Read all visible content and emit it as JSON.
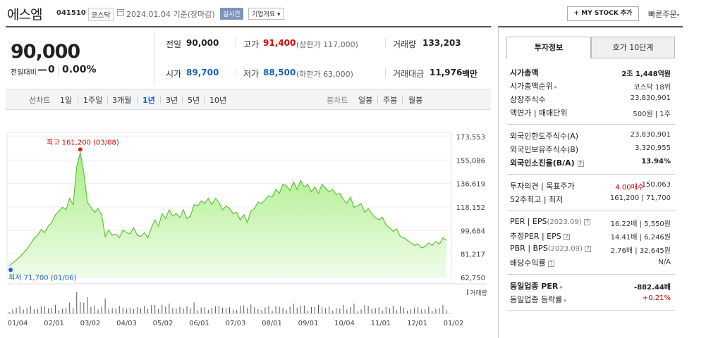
{
  "header": {
    "name": "에스엠",
    "code": "041510",
    "market": "코스닥",
    "date": "2024.01.04  기준(장마감)",
    "realtime": "실시간",
    "corp_info": "기업개요",
    "mystock": "+ MY STOCK 추가",
    "quick_order": "빠른주문"
  },
  "quote": {
    "price": "90,000",
    "prev_label": "전일대비",
    "change": "0",
    "change_pct": "0.00%",
    "prev_close_label": "전일",
    "prev_close": "90,000",
    "high_label": "고가",
    "high": "91,400",
    "upper_limit": "(상한가 117,000)",
    "volume_label": "거래량",
    "volume": "133,203",
    "open_label": "시가",
    "open": "89,700",
    "low_label": "저가",
    "low": "88,500",
    "lower_limit": "(하한가 63,000)",
    "amount_label": "거래대금",
    "amount": "11,976",
    "amount_unit": "백만"
  },
  "toolbar": {
    "line_label": "선차트",
    "periods": [
      "1일",
      "1주일",
      "3개월",
      "1년",
      "3년",
      "5년",
      "10년"
    ],
    "active_period": "1년",
    "candle_label": "봉차트",
    "candles": [
      "일봉",
      "주봉",
      "월봉"
    ]
  },
  "panel": {
    "tabs": [
      "투자정보",
      "호가 10단계"
    ],
    "market_cap_label": "시가총액",
    "market_cap": "2조 1,448억원",
    "cap_rank_label": "시가총액순위",
    "cap_rank": "코스닥 18위",
    "shares_label": "상장주식수",
    "shares": "23,830,901",
    "par_label": "액면가 | 매매단위",
    "par": "500원 | 1주",
    "foreign_limit_label": "외국인한도주식수(A)",
    "foreign_limit": "23,830,901",
    "foreign_hold_label": "외국인보유주식수(B)",
    "foreign_hold": "3,320,955",
    "foreign_ratio_label": "외국인소진율(B/A)",
    "foreign_ratio": "13.94%",
    "opinion_label": "투자의견 | 목표주가",
    "opinion": "4.00매수",
    "target": "150,063",
    "w52_label": "52주최고 | 최저",
    "w52": "161,200 | 71,700",
    "per_label": "PER | EPS",
    "per_period": "(2023.09)",
    "per": "16.22배 | 5,550원",
    "est_per_label": "추정PER | EPS",
    "est_per": "14.41배 | 6,246원",
    "pbr_label": "PBR | BPS",
    "pbr_period": "(2023.09)",
    "pbr": "2.76배 | 32,645원",
    "div_label": "배당수익률",
    "div": "N/A",
    "ind_per_label": "동일업종 PER",
    "ind_per": "-882.44배",
    "ind_chg_label": "동일업종 등락률",
    "ind_chg": "+0.21%"
  },
  "chart_data": {
    "type": "area",
    "yticks": [
      "173,553",
      "155,086",
      "136,619",
      "118,152",
      "99,684",
      "81,217",
      "62,750"
    ],
    "ylim": [
      62750,
      173553
    ],
    "xticks": [
      "01/04",
      "02/01",
      "03/02",
      "04/03",
      "05/02",
      "06/01",
      "07/03",
      "08/01",
      "09/01",
      "10/04",
      "11/01",
      "12/01",
      "01/02"
    ],
    "high_label": "최고 161,200 (03/08)",
    "low_label": "최저 71,700 (01/06)",
    "volume_label": "거래량",
    "values": [
      72000,
      74000,
      76500,
      79000,
      82000,
      85000,
      89000,
      93500,
      96000,
      100500,
      98000,
      103000,
      106000,
      112000,
      115000,
      118000,
      116000,
      125000,
      120000,
      150000,
      161200,
      145000,
      122000,
      118000,
      114000,
      117000,
      112000,
      95000,
      100000,
      96000,
      97000,
      94000,
      100000,
      98000,
      97000,
      102000,
      96000,
      95000,
      98000,
      94000,
      102000,
      108000,
      103000,
      113000,
      109000,
      116000,
      111000,
      113000,
      110000,
      116000,
      109000,
      111000,
      120000,
      119000,
      123000,
      121000,
      125000,
      120000,
      125000,
      122000,
      116000,
      119000,
      117000,
      113000,
      114000,
      108000,
      112000,
      106000,
      115000,
      117000,
      122000,
      121000,
      124000,
      127000,
      126000,
      132000,
      129000,
      136000,
      135000,
      131000,
      138000,
      132000,
      139000,
      134000,
      136000,
      130000,
      134000,
      129000,
      136000,
      133000,
      130000,
      132000,
      128000,
      129000,
      124000,
      121000,
      126000,
      118000,
      119000,
      121000,
      114000,
      117000,
      113000,
      110000,
      108000,
      110000,
      104000,
      102000,
      99000,
      101000,
      95000,
      94000,
      92000,
      90000,
      88000,
      89000,
      86000,
      87000,
      90000,
      88000,
      91000,
      89000,
      94000,
      92000
    ]
  }
}
